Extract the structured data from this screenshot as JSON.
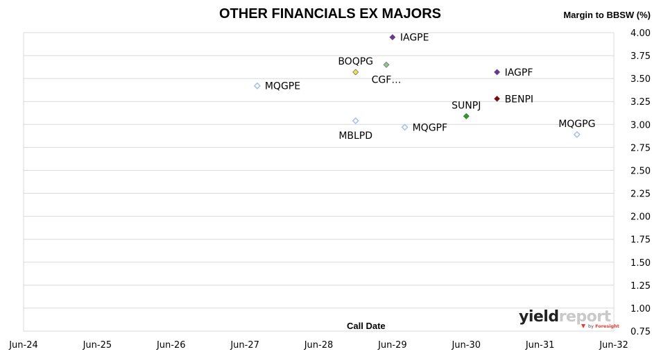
{
  "chart_data": {
    "type": "scatter",
    "title": "OTHER FINANCIALS EX MAJORS",
    "xlabel": "Call Date",
    "ylabel": "Margin to BBSW (%)",
    "x_ticks": [
      "Jun-24",
      "Jun-25",
      "Jun-26",
      "Jun-27",
      "Jun-28",
      "Jun-29",
      "Jun-30",
      "Jun-31",
      "Jun-32"
    ],
    "xlim": [
      "2024-06",
      "2032-06"
    ],
    "y_ticks": [
      "4.00",
      "3.75",
      "3.50",
      "3.25",
      "3.00",
      "2.75",
      "2.50",
      "2.25",
      "2.00",
      "1.75",
      "1.50",
      "1.25",
      "1.00",
      "0.75"
    ],
    "ylim": [
      0.75,
      4.0
    ],
    "grid": "horizontal",
    "y_axis_position": "right",
    "points": [
      {
        "label": "IAGPE",
        "date": "2029-06",
        "y": 3.95,
        "marker": "filled-diamond",
        "color": "#7030a0",
        "label_pos": "right"
      },
      {
        "label": "BOQPG",
        "date": "2028-12",
        "y": 3.57,
        "marker": "filled-diamond",
        "color": "#f2e04f",
        "label_pos": "above"
      },
      {
        "label": "CGF…",
        "date": "2029-05",
        "y": 3.65,
        "marker": "filled-diamond",
        "color": "#8ec78e",
        "label_pos": "below"
      },
      {
        "label": "IAGPF",
        "date": "2030-11",
        "y": 3.57,
        "marker": "filled-diamond",
        "color": "#7030a0",
        "label_pos": "right"
      },
      {
        "label": "MQGPE",
        "date": "2027-08",
        "y": 3.42,
        "marker": "open-diamond",
        "color": "#a9c3e6",
        "label_pos": "right"
      },
      {
        "label": "BENPI",
        "date": "2030-11",
        "y": 3.28,
        "marker": "filled-diamond",
        "color": "#8b0000",
        "label_pos": "right"
      },
      {
        "label": "SUNPJ",
        "date": "2030-06",
        "y": 3.09,
        "marker": "filled-diamond",
        "color": "#1aa51a",
        "label_pos": "above"
      },
      {
        "label": "MBLPD",
        "date": "2028-12",
        "y": 3.04,
        "marker": "open-diamond",
        "color": "#a9c3e6",
        "label_pos": "below"
      },
      {
        "label": "MQGPF",
        "date": "2029-08",
        "y": 2.97,
        "marker": "open-diamond",
        "color": "#a9c3e6",
        "label_pos": "right"
      },
      {
        "label": "MQGPG",
        "date": "2031-12",
        "y": 2.89,
        "marker": "open-diamond",
        "color": "#a9c3e6",
        "label_pos": "above"
      }
    ]
  },
  "watermark": {
    "brand_a": "yield",
    "brand_b": "report",
    "by_text": "by",
    "by_brand": "Foresight"
  }
}
